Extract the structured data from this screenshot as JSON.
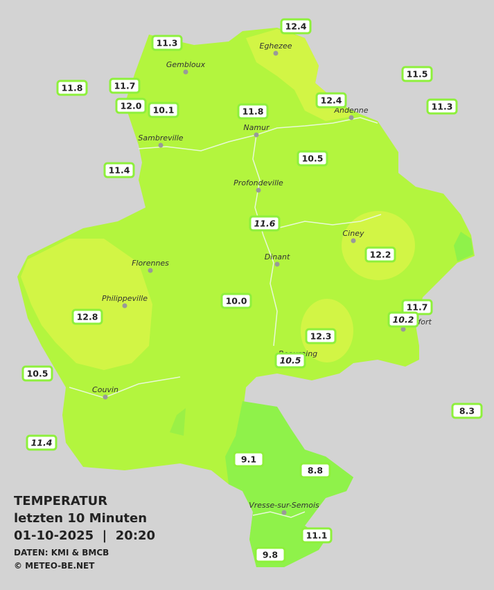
{
  "legend": {
    "title": "TEMPERATUR",
    "subtitle": "letzten 10 Minuten",
    "timestamp": "01-10-2025  |  20:20",
    "source": "DATEN: KMI & BMCB",
    "credit": "© METEO-BE.NET"
  },
  "cities": [
    "Eghezee",
    "Gembloux",
    "Andenne",
    "Namur",
    "Sambreville",
    "Profondeville",
    "Ciney",
    "Dinant",
    "Florennes",
    "Philippeville",
    "Rochefort",
    "Beauraing",
    "Couvin",
    "Vresse-sur-Semois"
  ],
  "stations": [
    "12.4",
    "11.3",
    "11.5",
    "11.8",
    "11.7",
    "12.0",
    "10.1",
    "11.8",
    "12.4",
    "11.3",
    "11.4",
    "10.5",
    "11.6",
    "12.2",
    "11.7",
    "10.2",
    "10.0",
    "12.8",
    "12.3",
    "10.5",
    "10.5",
    "8.3",
    "11.4",
    "9.1",
    "8.8",
    "11.1",
    "9.8"
  ]
}
